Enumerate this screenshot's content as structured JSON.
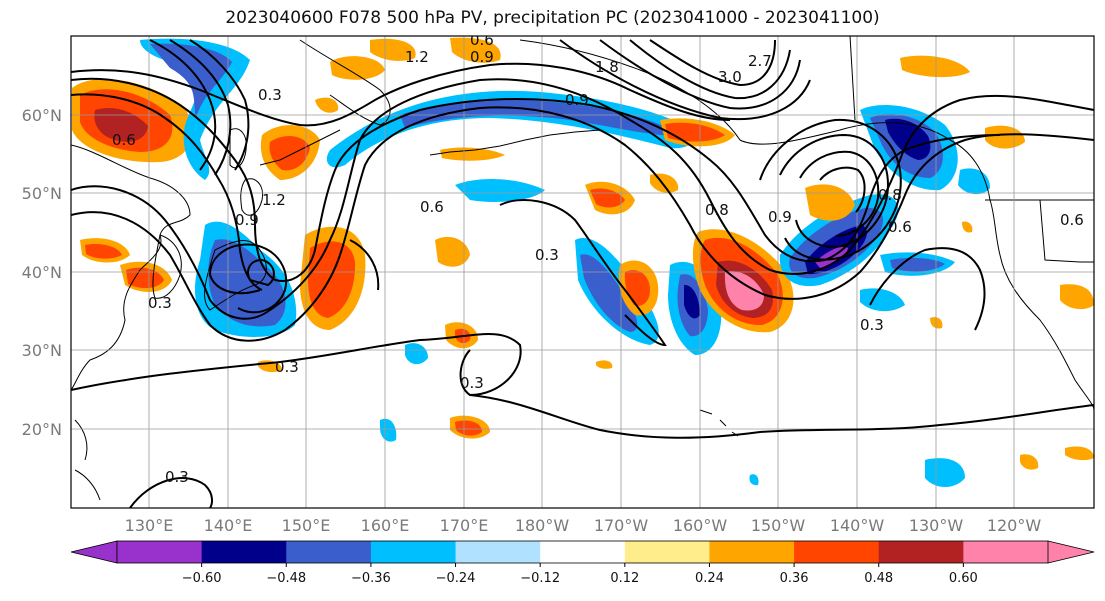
{
  "title": "2023040600 F078 500 hPa PV, precipitation PC (2023041000 - 2023041100)",
  "lat_labels": [
    "60°N",
    "50°N",
    "40°N",
    "30°N",
    "20°N"
  ],
  "lon_labels": [
    "130°E",
    "140°E",
    "150°E",
    "160°E",
    "170°E",
    "180°W",
    "170°W",
    "160°W",
    "150°W",
    "140°W",
    "130°W",
    "120°W"
  ],
  "contour_labels": [
    "0.3",
    "0.6",
    "0.9",
    "1.2",
    "1.8",
    "3.0",
    "2.7",
    "0.3",
    "0.6",
    "0.9",
    "1.2",
    "0.6",
    "0.9",
    "0.3",
    "0.3",
    "0.3",
    "0.3",
    "0.8",
    "0.9",
    "0.8",
    "0.6",
    "0.3",
    "0.6"
  ],
  "colorbar": {
    "ticks": [
      "−0.60",
      "−0.48",
      "−0.36",
      "−0.24",
      "−0.12",
      "0.12",
      "0.24",
      "0.36",
      "0.48",
      "0.60"
    ],
    "colors": [
      "#9932cc",
      "#00008b",
      "#3a5fcd",
      "#00bfff",
      "#b0e2ff",
      "#ffffff",
      "#ffec8b",
      "#ffa500",
      "#ff4500",
      "#b22222",
      "#ff82ab"
    ]
  }
}
